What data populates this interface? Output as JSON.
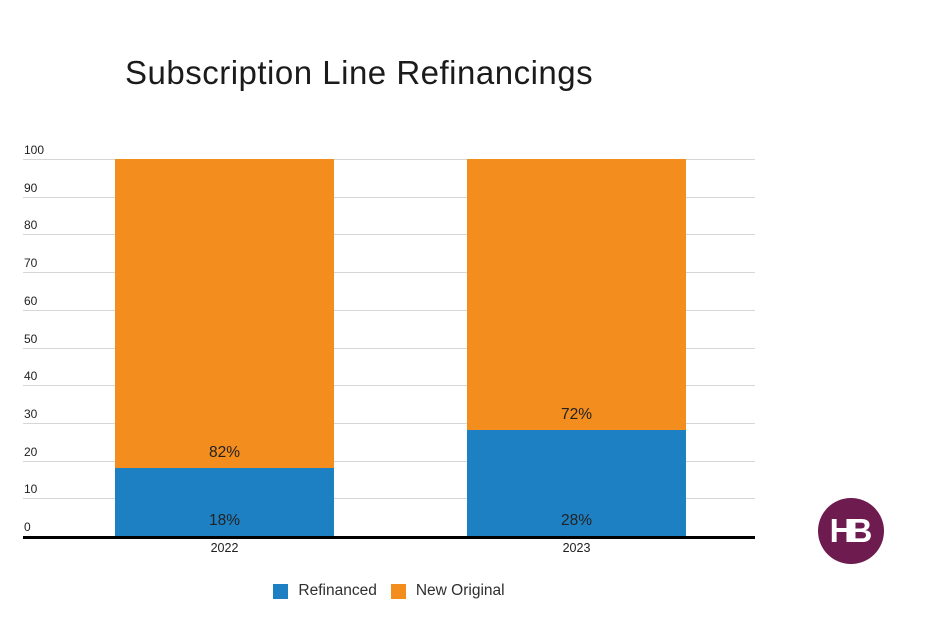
{
  "chart_data": {
    "type": "bar",
    "stacked": true,
    "title": "Subscription Line Refinancings",
    "categories": [
      "2022",
      "2023"
    ],
    "series": [
      {
        "name": "Refinanced",
        "color": "#1c80c3",
        "values": [
          18,
          28
        ],
        "data_labels": [
          "18%",
          "28%"
        ]
      },
      {
        "name": "New Original",
        "color": "#f38d1e",
        "values": [
          82,
          72
        ],
        "data_labels": [
          "82%",
          "72%"
        ]
      }
    ],
    "ylim": [
      0,
      100
    ],
    "yticks": [
      0,
      10,
      20,
      30,
      40,
      50,
      60,
      70,
      80,
      90,
      100
    ],
    "grid": true,
    "legend_position": "bottom",
    "data_label_position": "inside-bottom"
  },
  "colors": {
    "refinanced": "#1c80c3",
    "new_original": "#f38d1e",
    "gridline": "#d6d6d6",
    "axis": "#000000",
    "logo_background": "#6e1b4f",
    "logo_text": "#ffffff"
  },
  "logo": {
    "text": "HB"
  }
}
